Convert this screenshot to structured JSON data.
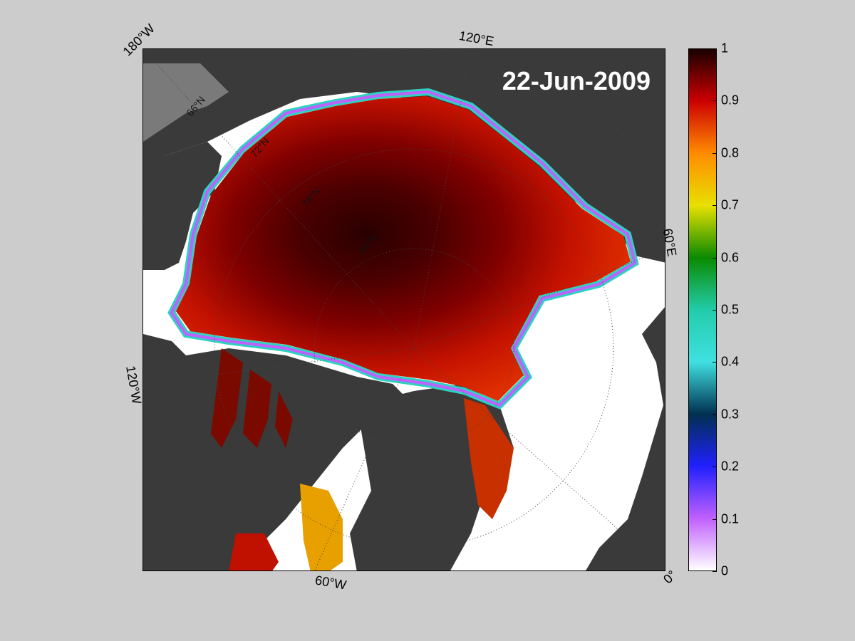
{
  "date": "22-Jun-2009",
  "lon_labels": [
    {
      "text": "180°W"
    },
    {
      "text": "120°E"
    },
    {
      "text": "60°E"
    },
    {
      "text": "120°W"
    },
    {
      "text": "60°W"
    },
    {
      "text": "0°"
    }
  ],
  "lat_labels": [
    {
      "text": "66°N"
    },
    {
      "text": "72°N"
    },
    {
      "text": "78°N"
    },
    {
      "text": "84°N"
    }
  ],
  "colorbar": {
    "min": 0,
    "max": 1,
    "ticks": [
      "1",
      "0.9",
      "0.8",
      "0.7",
      "0.6",
      "0.5",
      "0.4",
      "0.3",
      "0.2",
      "0.1",
      "0"
    ],
    "colors": {
      "1.0": "#1a0000",
      "0.9": "#cc0000",
      "0.8": "#ff8c00",
      "0.7": "#e8e000",
      "0.6": "#0a8a00",
      "0.5": "#22ccaa",
      "0.4": "#40e0e0",
      "0.3": "#003050",
      "0.2": "#2020ff",
      "0.1": "#c060ff",
      "0.0": "#ffffff"
    }
  },
  "colors": {
    "background": "#cccccc",
    "land": "#3a3a3a",
    "open_water": "#ffffff",
    "no_data": "#7a7a7a",
    "ice_core": "#4a0000"
  }
}
